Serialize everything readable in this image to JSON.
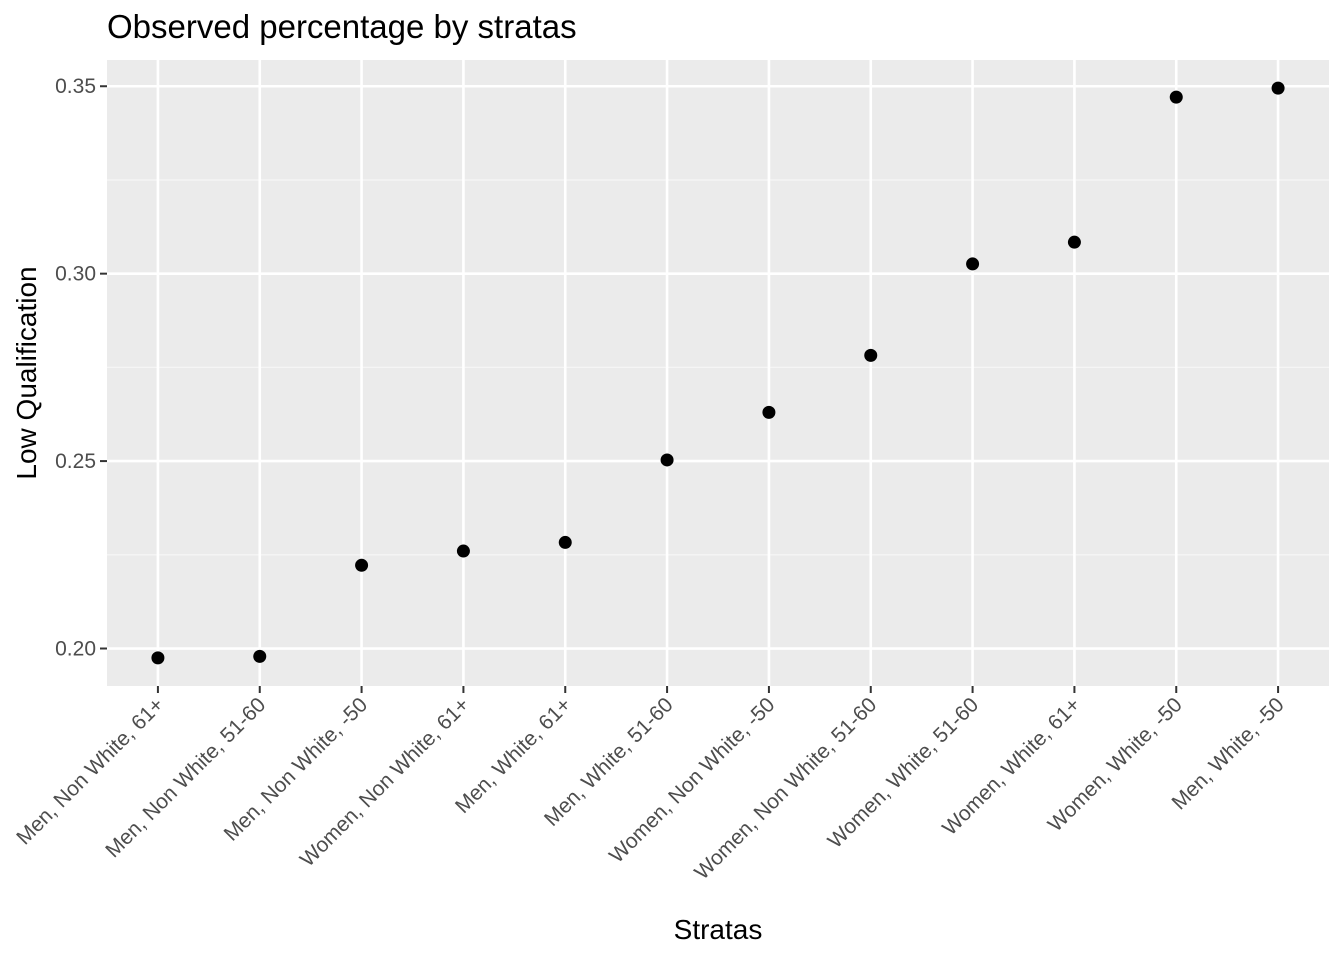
{
  "chart_data": {
    "type": "scatter",
    "title": "Observed percentage by stratas",
    "xlabel": "Stratas",
    "ylabel": "Low Qualification",
    "categories": [
      "Men, Non White, 61+",
      "Men, Non White, 51-60",
      "Men, Non White, -50",
      "Women, Non White, 61+",
      "Men, White, 61+",
      "Men, White, 51-60",
      "Women, Non White, -50",
      "Women, Non White, 51-60",
      "Women, White, 51-60",
      "Women, White, 61+",
      "Women, White, -50",
      "Men, White, -50"
    ],
    "values": [
      0.1975,
      0.1979,
      0.2222,
      0.226,
      0.2283,
      0.2503,
      0.263,
      0.2782,
      0.3026,
      0.3084,
      0.3471,
      0.3495
    ],
    "ylim": [
      0.19,
      0.357
    ],
    "yticks": [
      0.2,
      0.25,
      0.3,
      0.35
    ],
    "ytick_labels": [
      "0.20",
      "0.25",
      "0.30",
      "0.35"
    ],
    "grid": true,
    "legend": "none",
    "colors": {
      "panel_background": "#ebebeb",
      "grid_major": "#ffffff",
      "grid_minor": "#f5f5f5",
      "point": "#000000",
      "tick": "#333333"
    }
  }
}
